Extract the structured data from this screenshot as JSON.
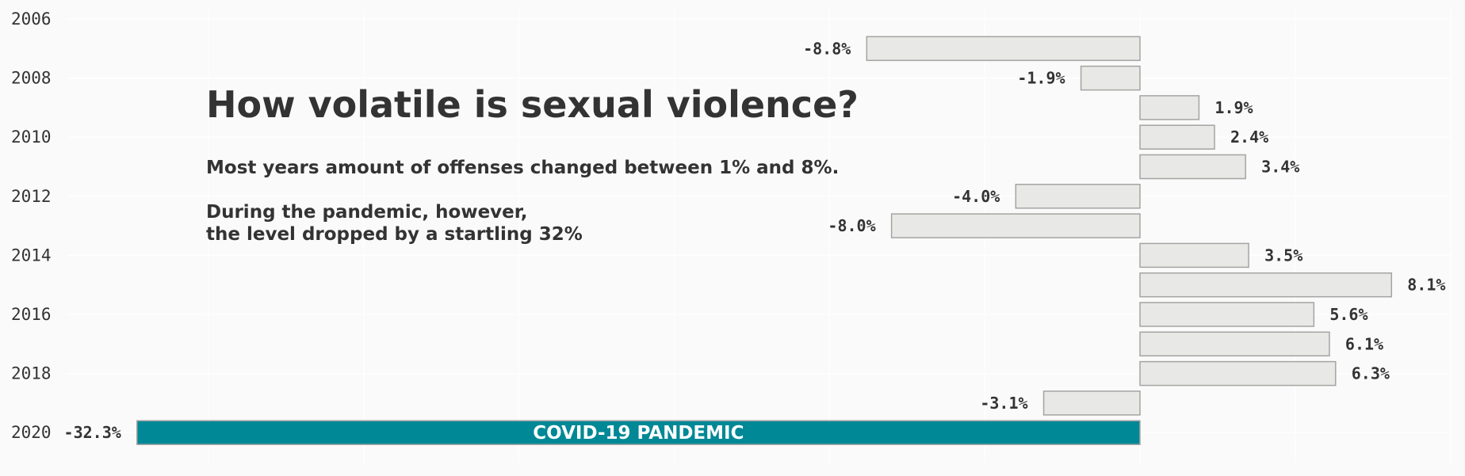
{
  "chart_data": {
    "type": "bar",
    "orientation": "horizontal",
    "title": "How volatile is sexual violence?",
    "subtitle_lines": [
      "Most years amount of offenses changed between 1% and 8%.",
      "During the pandemic, however,",
      "the level dropped by a startling 32%"
    ],
    "y_range": [
      2006,
      2020
    ],
    "y_ticks": [
      "2006",
      "2008",
      "2010",
      "2012",
      "2014",
      "2016",
      "2018",
      "2020"
    ],
    "x_range": [
      -35,
      10
    ],
    "grid": true,
    "categories": [
      2007,
      2008,
      2009,
      2010,
      2011,
      2012,
      2013,
      2014,
      2015,
      2016,
      2017,
      2018,
      2019,
      2020
    ],
    "values": [
      -8.8,
      -1.9,
      1.9,
      2.4,
      3.4,
      -4.0,
      -8.0,
      3.5,
      8.1,
      5.6,
      6.1,
      6.3,
      -3.1,
      -32.3
    ],
    "value_labels": [
      "-8.8%",
      "-1.9%",
      "1.9%",
      "2.4%",
      "3.4%",
      "-4.0%",
      "-8.0%",
      "3.5%",
      "8.1%",
      "5.6%",
      "6.1%",
      "6.3%",
      "-3.1%",
      "-32.3%"
    ],
    "annotation": {
      "year": 2020,
      "text": "COVID-19 PANDEMIC"
    },
    "colors": {
      "bar_fill": "#e8e9e6",
      "bar_stroke": "#a4a4a2",
      "highlight": "#008896",
      "text": "#333333",
      "grid": "#ffffff",
      "background": "#fafafa"
    }
  }
}
